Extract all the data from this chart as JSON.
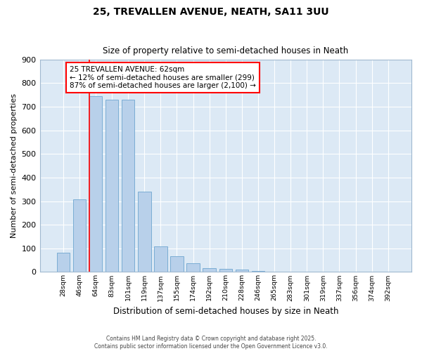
{
  "title1": "25, TREVALLEN AVENUE, NEATH, SA11 3UU",
  "title2": "Size of property relative to semi-detached houses in Neath",
  "xlabel": "Distribution of semi-detached houses by size in Neath",
  "ylabel": "Number of semi-detached properties",
  "categories": [
    "28sqm",
    "46sqm",
    "64sqm",
    "83sqm",
    "101sqm",
    "119sqm",
    "137sqm",
    "155sqm",
    "174sqm",
    "192sqm",
    "210sqm",
    "228sqm",
    "246sqm",
    "265sqm",
    "283sqm",
    "301sqm",
    "319sqm",
    "337sqm",
    "356sqm",
    "374sqm",
    "392sqm"
  ],
  "values": [
    80,
    308,
    745,
    730,
    730,
    340,
    108,
    68,
    38,
    15,
    12,
    10,
    5,
    0,
    0,
    0,
    0,
    0,
    0,
    0,
    0
  ],
  "bar_color": "#b8d0ea",
  "bar_edge_color": "#7aadd4",
  "plot_bg_color": "#dce9f5",
  "fig_bg_color": "#ffffff",
  "grid_color": "#ffffff",
  "red_line_index": 2,
  "property_label": "25 TREVALLEN AVENUE: 62sqm",
  "annotation_line1": "← 12% of semi-detached houses are smaller (299)",
  "annotation_line2": "87% of semi-detached houses are larger (2,100) →",
  "footer1": "Contains HM Land Registry data © Crown copyright and database right 2025.",
  "footer2": "Contains public sector information licensed under the Open Government Licence v3.0.",
  "ylim": [
    0,
    900
  ],
  "yticks": [
    0,
    100,
    200,
    300,
    400,
    500,
    600,
    700,
    800,
    900
  ]
}
